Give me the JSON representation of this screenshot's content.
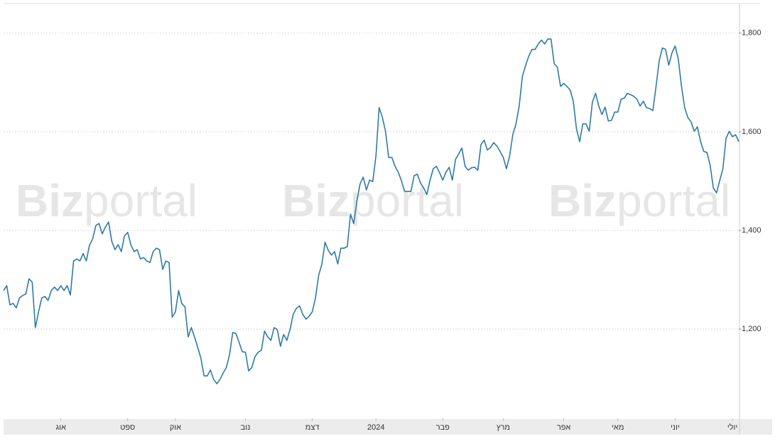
{
  "chart_data": {
    "type": "line",
    "watermark": {
      "bold": "Biz",
      "light": "portal"
    },
    "series": [
      {
        "color": "#2f7aa6",
        "values": [
          1278,
          1288,
          1249,
          1252,
          1243,
          1263,
          1268,
          1271,
          1302,
          1295,
          1203,
          1235,
          1263,
          1266,
          1258,
          1278,
          1285,
          1278,
          1288,
          1278,
          1288,
          1269,
          1338,
          1342,
          1338,
          1353,
          1338,
          1370,
          1383,
          1410,
          1414,
          1393,
          1407,
          1417,
          1378,
          1361,
          1371,
          1357,
          1389,
          1396,
          1371,
          1357,
          1361,
          1342,
          1345,
          1338,
          1335,
          1357,
          1364,
          1361,
          1321,
          1338,
          1335,
          1224,
          1235,
          1278,
          1252,
          1245,
          1184,
          1203,
          1184,
          1163,
          1141,
          1105,
          1105,
          1117,
          1098,
          1089,
          1098,
          1111,
          1122,
          1148,
          1193,
          1191,
          1173,
          1154,
          1153,
          1115,
          1122,
          1144,
          1153,
          1157,
          1196,
          1184,
          1177,
          1203,
          1199,
          1165,
          1189,
          1177,
          1199,
          1230,
          1242,
          1247,
          1230,
          1220,
          1226,
          1235,
          1263,
          1309,
          1331,
          1376,
          1360,
          1350,
          1357,
          1332,
          1364,
          1364,
          1367,
          1433,
          1414,
          1459,
          1494,
          1508,
          1482,
          1502,
          1499,
          1551,
          1649,
          1630,
          1601,
          1548,
          1548,
          1530,
          1518,
          1501,
          1479,
          1479,
          1479,
          1511,
          1514,
          1496,
          1486,
          1473,
          1502,
          1525,
          1530,
          1517,
          1502,
          1518,
          1528,
          1502,
          1544,
          1555,
          1567,
          1530,
          1522,
          1527,
          1528,
          1522,
          1574,
          1583,
          1563,
          1568,
          1578,
          1571,
          1560,
          1548,
          1525,
          1551,
          1594,
          1616,
          1652,
          1712,
          1734,
          1753,
          1767,
          1767,
          1778,
          1786,
          1778,
          1788,
          1788,
          1738,
          1731,
          1692,
          1698,
          1692,
          1685,
          1662,
          1606,
          1580,
          1616,
          1616,
          1601,
          1660,
          1678,
          1652,
          1635,
          1650,
          1622,
          1623,
          1640,
          1640,
          1666,
          1668,
          1678,
          1675,
          1672,
          1666,
          1652,
          1662,
          1649,
          1647,
          1643,
          1692,
          1744,
          1770,
          1767,
          1735,
          1760,
          1774,
          1747,
          1692,
          1649,
          1629,
          1620,
          1601,
          1610,
          1580,
          1560,
          1558,
          1532,
          1486,
          1476,
          1501,
          1525,
          1587,
          1601,
          1590,
          1594,
          1580
        ]
      }
    ],
    "xlim": [
      0,
      231
    ],
    "xticks": [
      {
        "value": 18,
        "label": "אוג"
      },
      {
        "value": 39,
        "label": "ספט"
      },
      {
        "value": 54,
        "label": "אוק"
      },
      {
        "value": 76,
        "label": "נוב"
      },
      {
        "value": 97,
        "label": "דצמ"
      },
      {
        "value": 117,
        "label": "2024"
      },
      {
        "value": 138,
        "label": "פבר"
      },
      {
        "value": 157,
        "label": "מרץ"
      },
      {
        "value": 176,
        "label": "אפר"
      },
      {
        "value": 193,
        "label": "מאי"
      },
      {
        "value": 211,
        "label": "יוני"
      },
      {
        "value": 229,
        "label": "יולי"
      }
    ],
    "ylim": [
      1019,
      1860
    ],
    "yticks": [
      {
        "value": 1200,
        "label": "1,200"
      },
      {
        "value": 1400,
        "label": "1,400"
      },
      {
        "value": 1600,
        "label": "1,600"
      },
      {
        "value": 1800,
        "label": "1,800"
      }
    ],
    "grid": true
  }
}
